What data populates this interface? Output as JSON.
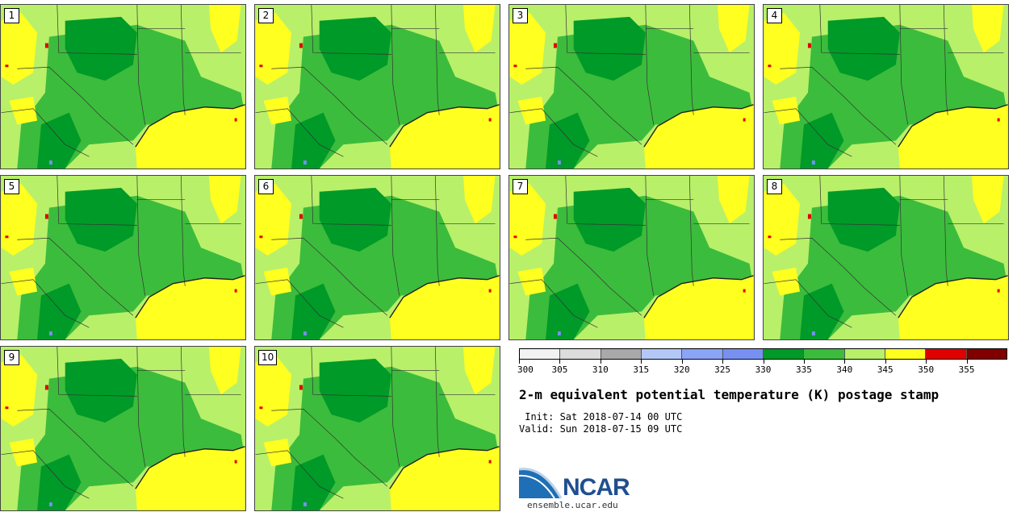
{
  "panels": [
    {
      "number": "1"
    },
    {
      "number": "2"
    },
    {
      "number": "3"
    },
    {
      "number": "4"
    },
    {
      "number": "5"
    },
    {
      "number": "6"
    },
    {
      "number": "7"
    },
    {
      "number": "8"
    },
    {
      "number": "9"
    },
    {
      "number": "10"
    }
  ],
  "colorbar": {
    "colors": [
      "#f2f2f2",
      "#dcdcdc",
      "#a9a9a9",
      "#b4c8f8",
      "#8aa4f8",
      "#7890f2",
      "#009a28",
      "#3cbc3c",
      "#b8f06a",
      "#ffff20",
      "#e00000",
      "#800000"
    ],
    "tick_labels": [
      "300",
      "305",
      "310",
      "315",
      "320",
      "325",
      "330",
      "335",
      "340",
      "345",
      "350",
      "355"
    ]
  },
  "title": "2-m equivalent potential temperature (K) postage stamp",
  "init": " Init: Sat 2018-07-14 00 UTC",
  "valid": "Valid: Sun 2018-07-15 09 UTC",
  "logo": {
    "name": "NCAR",
    "url": "ensemble.ucar.edu"
  },
  "map_colors": {
    "light_green": "#b8f06a",
    "green": "#3cbc3c",
    "dark_green": "#009a28",
    "yellow": "#ffff20",
    "red": "#e00000",
    "blue": "#7890f2"
  }
}
